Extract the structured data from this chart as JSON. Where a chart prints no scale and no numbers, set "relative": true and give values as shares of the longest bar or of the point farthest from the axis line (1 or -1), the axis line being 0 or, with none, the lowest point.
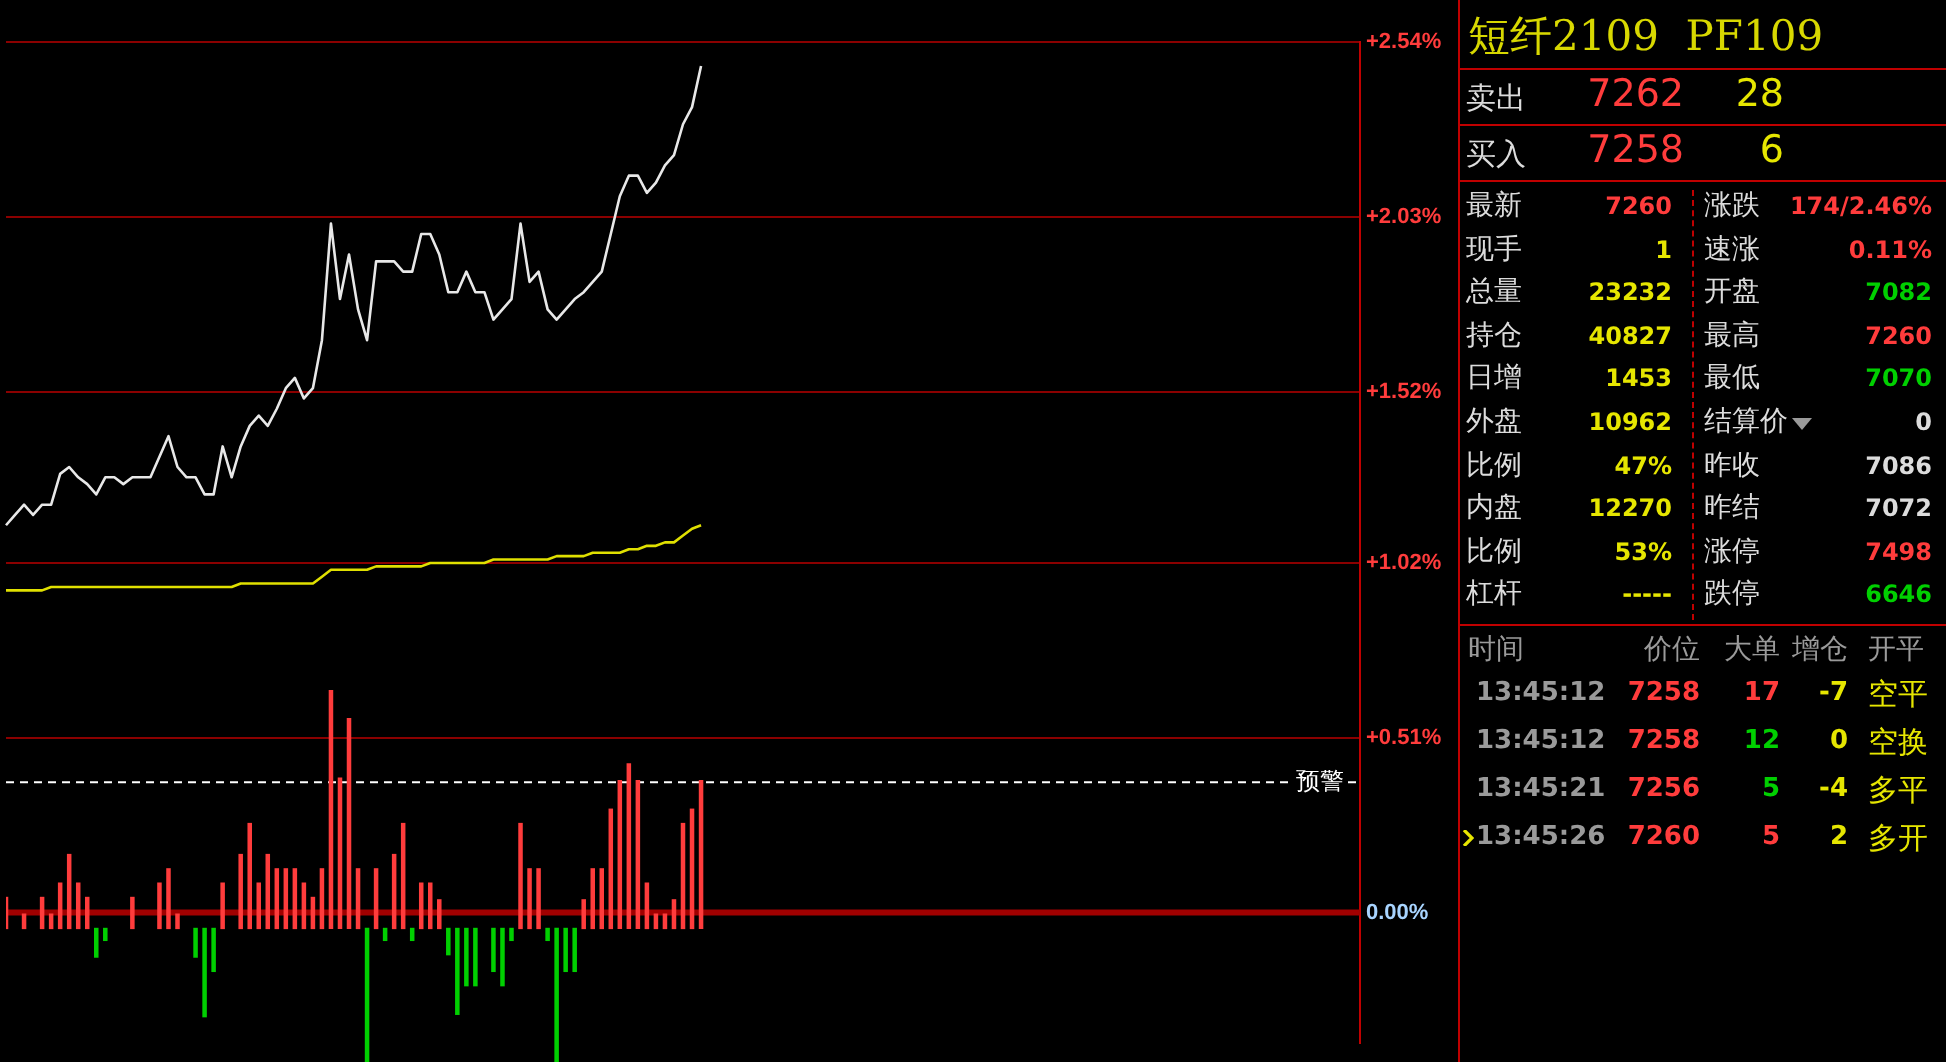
{
  "chart_data": [
    {
      "type": "line",
      "categories": [
        null,
        null,
        null,
        null,
        null,
        null,
        null,
        null,
        null,
        null,
        null,
        null,
        null,
        null,
        null,
        null,
        null,
        null,
        null,
        null,
        null,
        null,
        null,
        null,
        null,
        null,
        null,
        null,
        null,
        null,
        null,
        null,
        null,
        null,
        null,
        null,
        null,
        null,
        null,
        null,
        null,
        null,
        null,
        null,
        null,
        null,
        null,
        null,
        null,
        null,
        null,
        null,
        null,
        null,
        null,
        null,
        null,
        null,
        null,
        null,
        null,
        null,
        null,
        null,
        null,
        null,
        null,
        null,
        null,
        null,
        null,
        null,
        null,
        null,
        null,
        null,
        null,
        null,
        null,
        null,
        null,
        null,
        null,
        null,
        null,
        null,
        null,
        null,
        null,
        null,
        null,
        null,
        null,
        null,
        null,
        null,
        null,
        null,
        null,
        null,
        null,
        null,
        null,
        null,
        null,
        null,
        null,
        null,
        null,
        null,
        null,
        null,
        null,
        null,
        null,
        null,
        null,
        null,
        null,
        null,
        null,
        null,
        null,
        null,
        null,
        null,
        null,
        null,
        null,
        null,
        null,
        null,
        null,
        null,
        null,
        null,
        null,
        null,
        null,
        null,
        null,
        null,
        null,
        null,
        null,
        null,
        null,
        null,
        null,
        null,
        null
      ],
      "series": [
        {
          "color": "#e8e8e8",
          "values": [
            1.13,
            1.16,
            1.19,
            1.16,
            1.19,
            1.19,
            1.28,
            1.3,
            1.27,
            1.25,
            1.22,
            1.27,
            1.27,
            1.25,
            1.27,
            1.27,
            1.27,
            1.33,
            1.39,
            1.3,
            1.27,
            1.27,
            1.22,
            1.22,
            1.36,
            1.27,
            1.36,
            1.42,
            1.45,
            1.42,
            1.47,
            1.53,
            1.56,
            1.5,
            1.53,
            1.67,
            2.01,
            1.79,
            1.92,
            1.76,
            1.67,
            1.9,
            1.9,
            1.9,
            1.87,
            1.87,
            1.98,
            1.98,
            1.92,
            1.81,
            1.81,
            1.87,
            1.81,
            1.81,
            1.73,
            1.76,
            1.79,
            2.01,
            1.84,
            1.87,
            1.76,
            1.73,
            1.76,
            1.79,
            1.81,
            1.84,
            1.87,
            1.98,
            2.09,
            2.15,
            2.15,
            2.1,
            2.13,
            2.18,
            2.21,
            2.3,
            2.35,
            2.47,
            null,
            null,
            null,
            null,
            null,
            null,
            null,
            null,
            null,
            null,
            null,
            null,
            null,
            null,
            null,
            null,
            null,
            null,
            null,
            null,
            null,
            null,
            null,
            null,
            null,
            null,
            null,
            null,
            null,
            null,
            null,
            null,
            null,
            null,
            null,
            null,
            null,
            null,
            null,
            null,
            null,
            null,
            null,
            null,
            null,
            null,
            null,
            null,
            null,
            null,
            null,
            null,
            null,
            null,
            null,
            null,
            null,
            null,
            null,
            null,
            null,
            null,
            null,
            null,
            null,
            null,
            null,
            null,
            null,
            null,
            null,
            null,
            null
          ]
        },
        {
          "color": "#e0e000",
          "values": [
            0.94,
            0.94,
            0.94,
            0.94,
            0.94,
            0.95,
            0.95,
            0.95,
            0.95,
            0.95,
            0.95,
            0.95,
            0.95,
            0.95,
            0.95,
            0.95,
            0.95,
            0.95,
            0.95,
            0.95,
            0.95,
            0.95,
            0.95,
            0.95,
            0.95,
            0.95,
            0.96,
            0.96,
            0.96,
            0.96,
            0.96,
            0.96,
            0.96,
            0.96,
            0.96,
            0.98,
            1.0,
            1.0,
            1.0,
            1.0,
            1.0,
            1.01,
            1.01,
            1.01,
            1.01,
            1.01,
            1.01,
            1.02,
            1.02,
            1.02,
            1.02,
            1.02,
            1.02,
            1.02,
            1.03,
            1.03,
            1.03,
            1.03,
            1.03,
            1.03,
            1.03,
            1.04,
            1.04,
            1.04,
            1.04,
            1.05,
            1.05,
            1.05,
            1.05,
            1.06,
            1.06,
            1.07,
            1.07,
            1.08,
            1.08,
            1.1,
            1.12,
            1.13,
            null,
            null,
            null,
            null,
            null,
            null,
            null,
            null,
            null,
            null,
            null,
            null,
            null,
            null,
            null,
            null,
            null,
            null,
            null,
            null,
            null,
            null,
            null,
            null,
            null,
            null,
            null,
            null,
            null,
            null,
            null,
            null,
            null,
            null,
            null,
            null,
            null,
            null,
            null,
            null,
            null,
            null,
            null,
            null,
            null,
            null,
            null,
            null,
            null,
            null,
            null,
            null,
            null,
            null,
            null,
            null,
            null,
            null,
            null,
            null,
            null,
            null,
            null,
            null,
            null,
            null,
            null,
            null,
            null,
            null,
            null,
            null,
            null
          ]
        }
      ],
      "ylim": [
        -0.38,
        2.54
      ],
      "yticks": [
        {
          "value": 0,
          "label": "0.00%"
        },
        {
          "value": 0.51,
          "label": "+0.51%"
        },
        {
          "value": 1.02,
          "label": "+1.02%"
        },
        {
          "value": 1.52,
          "label": "+1.52%"
        },
        {
          "value": 2.03,
          "label": "+2.03%"
        },
        {
          "value": 2.54,
          "label": "+2.54%"
        }
      ],
      "grid": "y",
      "legend": false,
      "tick_labels": "y",
      "marker": "none",
      "line_style": "solid",
      "ref_lines": [
        {
          "axis": "y",
          "value": 0.38,
          "label": "预警",
          "color": "#ffffff",
          "line_style": "dashed"
        },
        {
          "axis": "y",
          "value": 0,
          "color": "#a00000",
          "line_style": "solid"
        }
      ]
    },
    {
      "type": "bar",
      "relative": true,
      "categories": [
        null,
        null,
        null,
        null,
        null,
        null,
        null,
        null,
        null,
        null,
        null,
        null,
        null,
        null,
        null,
        null,
        null,
        null,
        null,
        null,
        null,
        null,
        null,
        null,
        null,
        null,
        null,
        null,
        null,
        null,
        null,
        null,
        null,
        null,
        null,
        null,
        null,
        null,
        null,
        null,
        null,
        null,
        null,
        null,
        null,
        null,
        null,
        null,
        null,
        null,
        null,
        null,
        null,
        null,
        null,
        null,
        null,
        null,
        null,
        null,
        null,
        null,
        null,
        null,
        null,
        null,
        null,
        null,
        null,
        null,
        null,
        null,
        null,
        null,
        null,
        null,
        null,
        null,
        null,
        null,
        null,
        null,
        null,
        null,
        null,
        null,
        null,
        null,
        null,
        null,
        null,
        null,
        null,
        null,
        null,
        null,
        null,
        null,
        null,
        null,
        null,
        null,
        null,
        null,
        null,
        null,
        null,
        null,
        null,
        null,
        null,
        null,
        null,
        null,
        null,
        null,
        null,
        null,
        null,
        null,
        null,
        null,
        null,
        null,
        null,
        null,
        null,
        null,
        null,
        null,
        null,
        null,
        null,
        null,
        null,
        null,
        null,
        null,
        null,
        null,
        null,
        null,
        null,
        null,
        null,
        null,
        null,
        null,
        null,
        null,
        null
      ],
      "series": [
        {
          "color": "#ff3c3c",
          "values": [
            0.13,
            null,
            0.06,
            null,
            0.13,
            0.06,
            0.19,
            0.31,
            0.19,
            0.13,
            null,
            null,
            null,
            null,
            0.13,
            null,
            null,
            0.19,
            0.25,
            0.06,
            null,
            null,
            null,
            null,
            0.19,
            null,
            0.31,
            0.44,
            0.19,
            0.31,
            0.25,
            0.25,
            0.25,
            0.19,
            0.13,
            0.25,
            1,
            0.63,
            0.88,
            0.25,
            null,
            0.25,
            null,
            0.31,
            0.44,
            null,
            0.19,
            0.19,
            0.12,
            null,
            null,
            null,
            null,
            null,
            null,
            null,
            null,
            0.44,
            0.25,
            0.25,
            null,
            null,
            null,
            null,
            0.12,
            0.25,
            0.25,
            0.5,
            0.62,
            0.69,
            0.62,
            0.19,
            0.06,
            0.06,
            0.12,
            0.44,
            0.5,
            0.62,
            null,
            null,
            null,
            null,
            null,
            null,
            null,
            null,
            null,
            null,
            null,
            null,
            null,
            null,
            null,
            null,
            null,
            null,
            null,
            null,
            null,
            null,
            null,
            null,
            null,
            null,
            null,
            null,
            null,
            null,
            null,
            null,
            null,
            null,
            null,
            null,
            null,
            null,
            null,
            null,
            null,
            null,
            null,
            null,
            null,
            null,
            null,
            null,
            null,
            null,
            null,
            null,
            null,
            null,
            null,
            null,
            null,
            null,
            null,
            null,
            null,
            null,
            null,
            null,
            null,
            null,
            null,
            null,
            null,
            null,
            null,
            null,
            null
          ]
        },
        {
          "color": "#00d000",
          "values": [
            null,
            null,
            null,
            null,
            null,
            null,
            null,
            null,
            null,
            null,
            -0.12,
            -0.05,
            null,
            null,
            null,
            null,
            null,
            null,
            null,
            null,
            null,
            -0.12,
            -0.37,
            -0.18,
            null,
            null,
            null,
            null,
            null,
            null,
            null,
            null,
            null,
            null,
            null,
            null,
            null,
            null,
            null,
            null,
            -0.56,
            null,
            -0.05,
            null,
            null,
            -0.05,
            null,
            null,
            null,
            -0.11,
            -0.36,
            -0.24,
            -0.24,
            null,
            -0.18,
            -0.24,
            -0.05,
            null,
            null,
            null,
            -0.05,
            -0.56,
            -0.18,
            -0.18,
            null,
            null,
            null,
            null,
            null,
            null,
            null,
            null,
            null,
            null,
            null,
            null,
            null,
            null,
            null,
            null,
            null,
            null,
            null,
            null,
            null,
            null,
            null,
            null,
            null,
            null,
            null,
            null,
            null,
            null,
            null,
            null,
            null,
            null,
            null,
            null,
            null,
            null,
            null,
            null,
            null,
            null,
            null,
            null,
            null,
            null,
            null,
            null,
            null,
            null,
            null,
            null,
            null,
            null,
            null,
            null,
            null,
            null,
            null,
            null,
            null,
            null,
            null,
            null,
            null,
            null,
            null,
            null,
            null,
            null,
            null,
            null,
            null,
            null,
            null,
            null,
            null,
            null,
            null,
            null,
            null,
            null,
            null,
            null,
            null,
            null,
            null
          ]
        }
      ],
      "legend": false,
      "tick_labels": false,
      "grid": false
    },
    {
      "type": "other",
      "title": "短纤2109  PF109",
      "annotations": [
        "卖出",
        "7262",
        "28",
        "买入",
        "7258",
        "6",
        "最新",
        "7260",
        "涨跌",
        "174/2.46%",
        "现手",
        "1",
        "速涨",
        "0.11%",
        "总量",
        "23232",
        "开盘",
        "7082",
        "持仓",
        "40827",
        "最高",
        "7260",
        "日增",
        "1453",
        "最低",
        "7070",
        "外盘",
        "10962",
        "结算价",
        "0",
        "比例",
        "47%",
        "昨收",
        "7086",
        "内盘",
        "12270",
        "昨结",
        "7072",
        "比例",
        "53%",
        "涨停",
        "7498",
        "杠杆",
        "-----",
        "跌停",
        "6646",
        "时间",
        "价位",
        "大单",
        "增仓",
        "开平",
        "13:45:12",
        "7258",
        "17",
        "-7",
        "空平",
        "13:45:12",
        "7258",
        "12",
        "0",
        "空换",
        "13:45:21",
        "7256",
        "5",
        "-4",
        "多平",
        "13:45:26",
        "7260",
        "5",
        "2",
        "多开"
      ]
    }
  ]
}
